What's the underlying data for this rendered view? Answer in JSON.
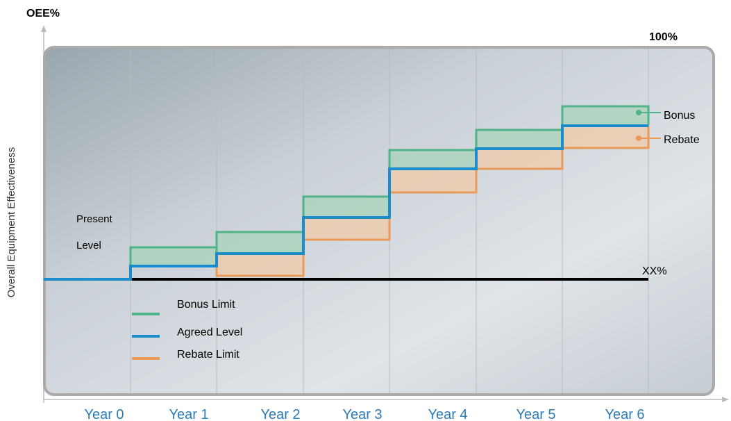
{
  "axis": {
    "y_title": "OEE%",
    "y_label": "Overall Equipment Effectiveness",
    "top_label": "100%",
    "base_label": "XX%"
  },
  "present_level": [
    "Present",
    "Level"
  ],
  "years": [
    "Year 0",
    "Year 1",
    "Year 2",
    "Year 3",
    "Year 4",
    "Year 5",
    "Year 6"
  ],
  "callouts": [
    "Bonus",
    "Rebate"
  ],
  "legend": [
    "Bonus Limit",
    "Agreed Level",
    "Rebate Limit"
  ]
}
